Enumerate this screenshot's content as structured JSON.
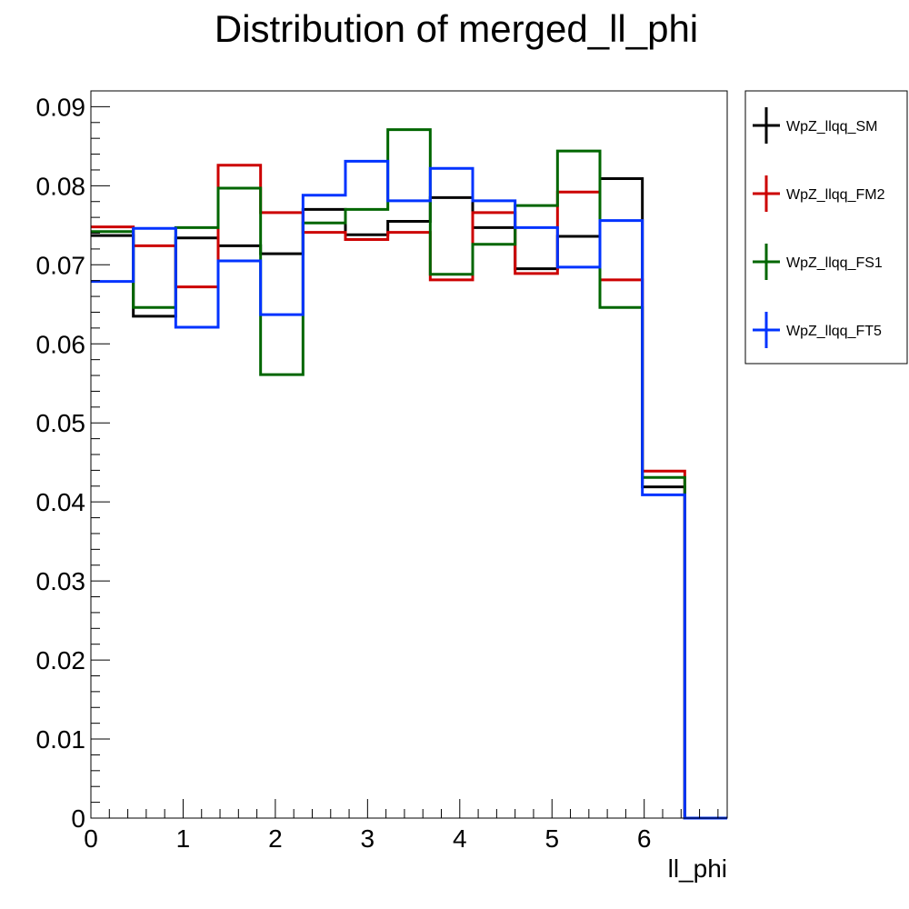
{
  "chart_data": {
    "type": "line",
    "style": "step-histogram",
    "title": "Distribution of merged_ll_phi",
    "xlabel": "ll_phi",
    "ylabel": "",
    "xlim": [
      0,
      6.9
    ],
    "ylim": [
      0,
      0.092
    ],
    "bin_edges": [
      0,
      0.46,
      0.92,
      1.38,
      1.84,
      2.3,
      2.76,
      3.22,
      3.68,
      4.14,
      4.6,
      5.06,
      5.52,
      5.98,
      6.44,
      6.9
    ],
    "x_ticks": [
      0,
      1,
      2,
      3,
      4,
      5,
      6
    ],
    "x_tick_labels": [
      "0",
      "1",
      "2",
      "3",
      "4",
      "5",
      "6"
    ],
    "y_ticks": [
      0,
      0.01,
      0.02,
      0.03,
      0.04,
      0.05,
      0.06,
      0.07,
      0.08,
      0.09
    ],
    "y_tick_labels": [
      "0",
      "0.01",
      "0.02",
      "0.03",
      "0.04",
      "0.05",
      "0.06",
      "0.07",
      "0.08",
      "0.09"
    ],
    "legend_position": "right, outside plot",
    "series": [
      {
        "name": "WpZ_llqq_SM",
        "color": "#000000",
        "values": [
          0.0737,
          0.0635,
          0.0734,
          0.0724,
          0.0714,
          0.077,
          0.0738,
          0.0755,
          0.0785,
          0.0747,
          0.0695,
          0.0736,
          0.0809,
          0.0419,
          0.0
        ]
      },
      {
        "name": "WpZ_llqq_FM2",
        "color": "#cc0000",
        "values": [
          0.0748,
          0.0724,
          0.0672,
          0.0826,
          0.0766,
          0.0741,
          0.0732,
          0.0741,
          0.0681,
          0.0766,
          0.0689,
          0.0792,
          0.0681,
          0.0439,
          0.0
        ]
      },
      {
        "name": "WpZ_llqq_FS1",
        "color": "#006600",
        "values": [
          0.0742,
          0.0646,
          0.0747,
          0.0797,
          0.0561,
          0.0753,
          0.077,
          0.0871,
          0.0688,
          0.0726,
          0.0775,
          0.0844,
          0.0646,
          0.0431,
          0.0
        ]
      },
      {
        "name": "WpZ_llqq_FT5",
        "color": "#0033ff",
        "values": [
          0.0679,
          0.0746,
          0.0621,
          0.0705,
          0.0637,
          0.0788,
          0.0831,
          0.0781,
          0.0822,
          0.0781,
          0.0747,
          0.0697,
          0.0756,
          0.0409,
          0.0
        ]
      }
    ]
  }
}
